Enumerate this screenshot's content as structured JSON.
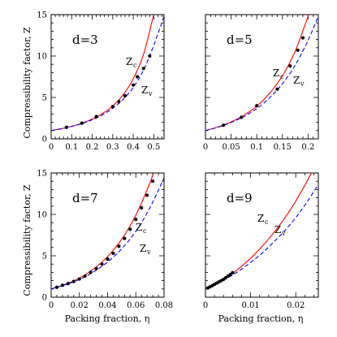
{
  "figure": {
    "ylabel": "Compressibility factor, Z",
    "xlabel": "Packing fraction, η"
  },
  "chart_data": [
    {
      "type": "line",
      "d_label": "d=3",
      "xlim": [
        0,
        0.55
      ],
      "ylim": [
        0,
        15
      ],
      "xticks": [
        0,
        0.1,
        0.2,
        0.3,
        0.4,
        0.5
      ],
      "xtick_labels": [
        "0",
        "0.1",
        "0.2",
        "0.3",
        "0.4",
        "0.5"
      ],
      "yticks": [
        0,
        5,
        10,
        15
      ],
      "ytick_labels": [
        "0",
        "5",
        "10",
        "15"
      ],
      "series": [
        {
          "name": "Z_c",
          "label_main": "Z",
          "label_sub": "c",
          "color": "#ff0000",
          "style": "solid",
          "x": [
            0,
            0.05,
            0.1,
            0.15,
            0.2,
            0.25,
            0.3,
            0.35,
            0.4,
            0.45,
            0.5,
            0.53
          ],
          "y": [
            1.0,
            1.23,
            1.52,
            1.89,
            2.39,
            3.05,
            3.97,
            5.3,
            7.24,
            10.2,
            15.0,
            17.5
          ]
        },
        {
          "name": "Z_v",
          "label_main": "Z",
          "label_sub": "v",
          "color": "#0000ff",
          "style": "dashed",
          "x": [
            0,
            0.05,
            0.1,
            0.15,
            0.2,
            0.25,
            0.3,
            0.35,
            0.4,
            0.45,
            0.5,
            0.55
          ],
          "y": [
            1.0,
            1.22,
            1.5,
            1.85,
            2.3,
            2.9,
            3.7,
            4.75,
            6.2,
            8.3,
            11.3,
            14.8
          ]
        }
      ],
      "points": {
        "x": [
          0.075,
          0.15,
          0.22,
          0.3,
          0.33,
          0.36,
          0.4,
          0.42,
          0.45,
          0.48
        ],
        "y": [
          1.4,
          1.9,
          2.7,
          3.9,
          4.5,
          5.2,
          6.5,
          7.5,
          8.5,
          10.0
        ]
      }
    },
    {
      "type": "line",
      "d_label": "d=5",
      "xlim": [
        0,
        0.22
      ],
      "ylim": [
        0,
        15
      ],
      "xticks": [
        0,
        0.05,
        0.1,
        0.15,
        0.2
      ],
      "xtick_labels": [
        "0",
        "0.05",
        "0.1",
        "0.15",
        "0.2"
      ],
      "yticks": [
        0,
        5,
        10,
        15
      ],
      "ytick_labels": [
        "",
        "",
        "",
        ""
      ],
      "series": [
        {
          "name": "Z_c",
          "label_main": "Z",
          "label_sub": "c",
          "color": "#ff0000",
          "style": "solid",
          "x": [
            0,
            0.025,
            0.05,
            0.075,
            0.1,
            0.125,
            0.15,
            0.175,
            0.2,
            0.215
          ],
          "y": [
            1.0,
            1.45,
            2.05,
            2.85,
            3.95,
            5.5,
            7.6,
            10.6,
            14.8,
            17.5
          ]
        },
        {
          "name": "Z_v",
          "label_main": "Z",
          "label_sub": "v",
          "color": "#0000ff",
          "style": "dashed",
          "x": [
            0,
            0.025,
            0.05,
            0.075,
            0.1,
            0.125,
            0.15,
            0.175,
            0.2,
            0.22
          ],
          "y": [
            1.0,
            1.42,
            1.98,
            2.7,
            3.65,
            4.95,
            6.65,
            8.9,
            11.9,
            14.8
          ]
        }
      ],
      "points": {
        "x": [
          0.035,
          0.07,
          0.1,
          0.14,
          0.165,
          0.18,
          0.19
        ],
        "y": [
          1.65,
          2.6,
          4.0,
          6.0,
          8.8,
          10.7,
          12.2
        ]
      }
    },
    {
      "type": "line",
      "d_label": "d=7",
      "xlim": [
        0,
        0.08
      ],
      "ylim": [
        0,
        15
      ],
      "xticks": [
        0,
        0.02,
        0.04,
        0.06,
        0.08
      ],
      "xtick_labels": [
        "0",
        "0.02",
        "0.04",
        "0.06",
        "0.08"
      ],
      "yticks": [
        0,
        5,
        10,
        15
      ],
      "ytick_labels": [
        "0",
        "5",
        "10",
        "15"
      ],
      "series": [
        {
          "name": "Z_c",
          "label_main": "Z",
          "label_sub": "c",
          "color": "#ff0000",
          "style": "solid",
          "x": [
            0,
            0.01,
            0.02,
            0.03,
            0.04,
            0.05,
            0.06,
            0.07,
            0.074
          ],
          "y": [
            1.0,
            1.55,
            2.3,
            3.4,
            4.9,
            7.0,
            9.9,
            13.8,
            15.8
          ]
        },
        {
          "name": "Z_v",
          "label_main": "Z",
          "label_sub": "v",
          "color": "#0000ff",
          "style": "dashed",
          "x": [
            0,
            0.01,
            0.02,
            0.03,
            0.04,
            0.05,
            0.06,
            0.07,
            0.08
          ],
          "y": [
            1.0,
            1.5,
            2.15,
            3.05,
            4.25,
            5.85,
            7.95,
            10.8,
            14.4
          ]
        }
      ],
      "points": {
        "x": [
          0.004,
          0.008,
          0.012,
          0.016,
          0.02,
          0.024,
          0.028,
          0.032,
          0.036,
          0.04,
          0.044,
          0.048,
          0.052,
          0.056,
          0.06,
          0.064,
          0.068,
          0.072
        ],
        "y": [
          1.2,
          1.45,
          1.65,
          1.9,
          2.2,
          2.55,
          3.0,
          3.45,
          4.0,
          4.6,
          5.3,
          6.15,
          7.1,
          8.2,
          9.4,
          10.8,
          12.3,
          14.0
        ]
      }
    },
    {
      "type": "line",
      "d_label": "d=9",
      "xlim": [
        0,
        0.025
      ],
      "ylim": [
        0,
        15
      ],
      "xticks": [
        0,
        0.01,
        0.02
      ],
      "xtick_labels": [
        "0",
        "0.01",
        "0.02"
      ],
      "yticks": [
        0,
        5,
        10,
        15
      ],
      "ytick_labels": [
        "",
        "",
        "",
        ""
      ],
      "series": [
        {
          "name": "Z_c",
          "label_main": "Z",
          "label_sub": "c",
          "color": "#ff0000",
          "style": "solid",
          "x": [
            0,
            0.0025,
            0.005,
            0.0075,
            0.01,
            0.0125,
            0.015,
            0.0175,
            0.02,
            0.0225,
            0.024
          ],
          "y": [
            1.0,
            1.65,
            2.5,
            3.5,
            4.7,
            6.1,
            7.7,
            9.5,
            11.6,
            14.0,
            15.6
          ]
        },
        {
          "name": "Z_v",
          "label_main": "Z",
          "label_sub": "v",
          "color": "#0000ff",
          "style": "dashed",
          "x": [
            0,
            0.0025,
            0.005,
            0.0075,
            0.01,
            0.0125,
            0.015,
            0.0175,
            0.02,
            0.0225,
            0.025
          ],
          "y": [
            1.0,
            1.6,
            2.35,
            3.2,
            4.2,
            5.3,
            6.6,
            8.0,
            9.6,
            11.5,
            13.6
          ]
        }
      ],
      "points": {
        "x": [
          0.0005,
          0.001,
          0.0015,
          0.002,
          0.0025,
          0.003,
          0.0035,
          0.004,
          0.0045,
          0.005,
          0.0055,
          0.006
        ],
        "y": [
          1.1,
          1.25,
          1.4,
          1.55,
          1.7,
          1.85,
          2.0,
          2.15,
          2.35,
          2.55,
          2.75,
          2.95
        ]
      }
    }
  ]
}
